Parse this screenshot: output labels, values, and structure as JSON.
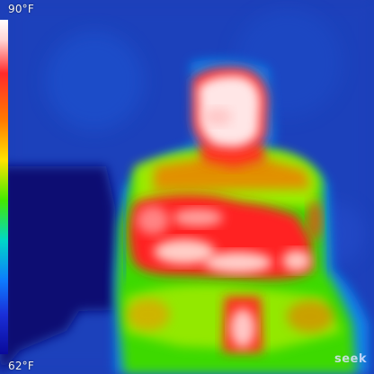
{
  "scale": {
    "max_label": "90°F",
    "min_label": "62°F"
  },
  "watermark": {
    "brand": "seek"
  },
  "colors": {
    "background_blue": "#1d3fb8",
    "hot_white": "#ffe7e7",
    "hot_red": "#ff2a2a",
    "mid_yellow": "#ffe400",
    "mid_green": "#44e800",
    "cool_blue": "#0d7bff"
  }
}
